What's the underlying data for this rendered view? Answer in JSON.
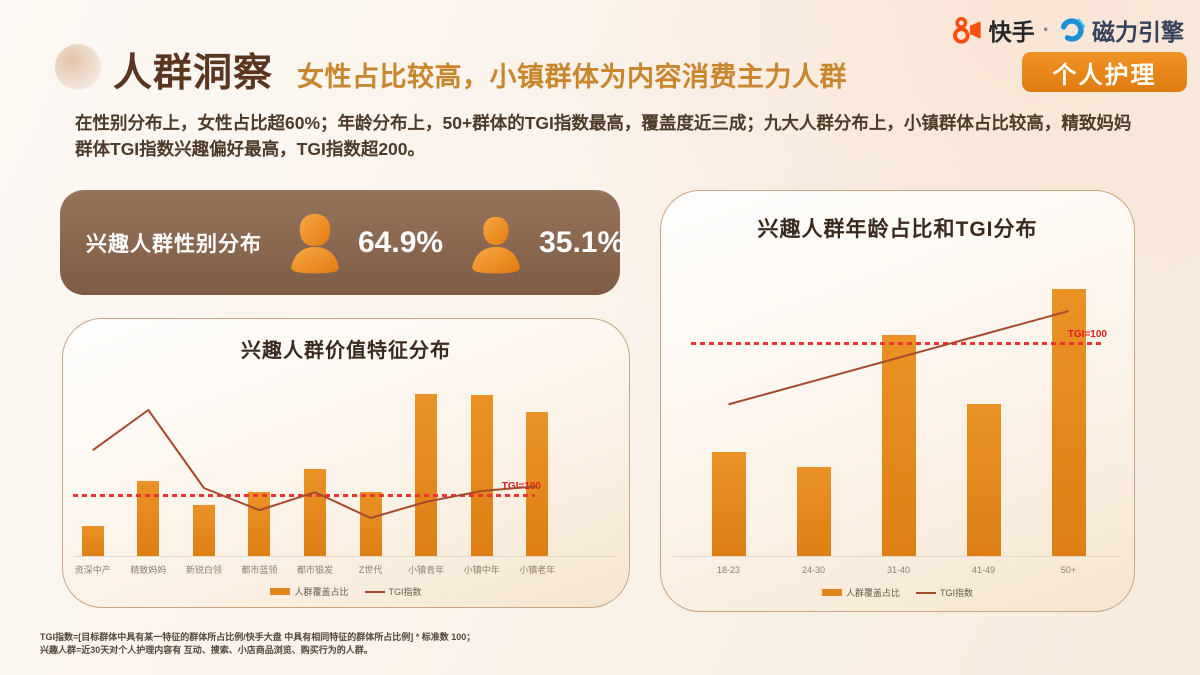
{
  "header": {
    "title": "人群洞察",
    "subtitle": "女性占比较高，小镇群体为内容消费主力人群",
    "brand": {
      "kuaishou": "快手",
      "separator": "·",
      "engine": "磁力引擎"
    },
    "category_tag": "个人护理"
  },
  "summary": "在性别分布上，女性占比超60%；年龄分布上，50+群体的TGI指数最高，覆盖度近三成；九大人群分布上，小镇群体占比较高，精致妈妈群体TGI指数兴趣偏好最高，TGI指数超200。",
  "gender_panel": {
    "label": "兴趣人群性别分布",
    "female_pct": "64.9%",
    "male_pct": "35.1%"
  },
  "chart_data": [
    {
      "type": "bar",
      "title": "兴趣人群价值特征分布",
      "categories": [
        "资深中产",
        "精致妈妈",
        "新锐白领",
        "都市蓝领",
        "都市银发",
        "Z世代",
        "小镇青年",
        "小镇中年",
        "小镇老年"
      ],
      "series": [
        {
          "name": "人群覆盖占比",
          "kind": "bar",
          "unit": "%",
          "values": [
            3.6,
            9.0,
            6.1,
            7.7,
            10.3,
            7.7,
            19.2,
            19.1,
            17.1
          ]
        },
        {
          "name": "TGI指数",
          "kind": "line",
          "values": [
            178,
            245,
            115,
            78,
            108,
            65,
            92,
            110,
            118
          ]
        }
      ],
      "reference_line": {
        "label": "TGI=100",
        "value": 100
      },
      "bar_axis_max": 24.7,
      "line_axis_max": 350,
      "legend_position": "bottom",
      "grid": false,
      "value_axis_hidden": true
    },
    {
      "type": "bar",
      "title": "兴趣人群年龄占比和TGI分布",
      "categories": [
        "18-23",
        "24-30",
        "31-40",
        "41-49",
        "50+"
      ],
      "series": [
        {
          "name": "人群覆盖占比",
          "kind": "bar",
          "unit": "%",
          "values": [
            12.5,
            10.7,
            26.5,
            18.3,
            32.0
          ]
        },
        {
          "name": "TGI指数",
          "kind": "line",
          "values": [
            72,
            83,
            94,
            105,
            116
          ]
        }
      ],
      "reference_line": {
        "label": "TGI=100",
        "value": 100
      },
      "bar_axis_max": 37,
      "line_axis_max": 146,
      "legend_position": "bottom",
      "grid": false,
      "value_axis_hidden": true
    }
  ],
  "footnotes": [
    "TGI指数=[目标群体中具有某一特征的群体所占比例/快手大盘 中具有相同特征的群体所占比例] * 标准数 100；",
    "兴趣人群=近30天对个人护理内容有 互动、搜索、小店商品浏览、购买行为的人群。"
  ],
  "icons": {
    "kuaishou_logo": "kuaishou-camera-icon",
    "engine_logo": "magnetic-engine-icon",
    "female": "female-person-icon",
    "male": "male-person-icon"
  },
  "colors": {
    "accent_orange": "#e1871c",
    "tgi_line_red": "#a64a2e",
    "dash_red": "#ee3333",
    "brand_orange": "#ff4e0d",
    "brand_blue": "#1e8fd5",
    "panel_brown": "#8d6b53",
    "title_brown": "#5a3520",
    "subtitle_orange": "#c8862d"
  }
}
